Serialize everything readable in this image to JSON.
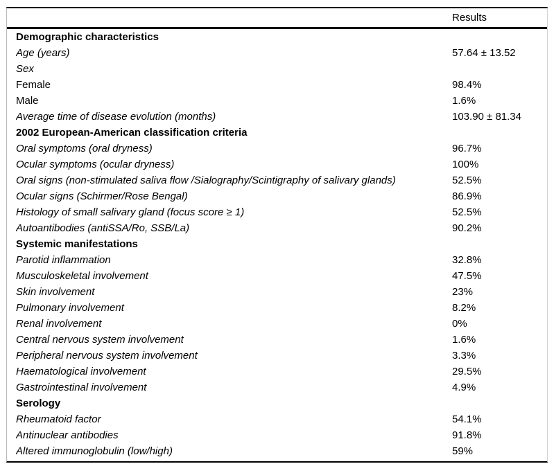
{
  "colors": {
    "text": "#000000",
    "rule_strong": "#000000",
    "rule_light": "#c4c4c4",
    "background": "#ffffff"
  },
  "table": {
    "header": {
      "results_col": "Results"
    },
    "rows": [
      {
        "label": "Demographic characteristics",
        "value": "",
        "style": "section"
      },
      {
        "label": "Age (years)",
        "value": "57.64 ± 13.52",
        "style": "italic"
      },
      {
        "label": "Sex",
        "value": "",
        "style": "italic"
      },
      {
        "label": "Female",
        "value": "98.4%",
        "style": "regular"
      },
      {
        "label": "Male",
        "value": "1.6%",
        "style": "regular"
      },
      {
        "label": "Average time of disease evolution (months)",
        "value": "103.90 ± 81.34",
        "style": "italic"
      },
      {
        "label": "2002 European-American classification criteria",
        "value": "",
        "style": "section"
      },
      {
        "label": "Oral symptoms (oral dryness)",
        "value": "96.7%",
        "style": "italic"
      },
      {
        "label": "Ocular symptoms (ocular dryness)",
        "value": "100%",
        "style": "italic"
      },
      {
        "label": "Oral signs (non-stimulated saliva flow /Sialography/Scintigraphy of salivary glands)",
        "value": "52.5%",
        "style": "italic"
      },
      {
        "label": "Ocular signs (Schirmer/Rose Bengal)",
        "value": "86.9%",
        "style": "italic"
      },
      {
        "label": "Histology of small salivary gland (focus score ≥ 1)",
        "value": "52.5%",
        "style": "italic"
      },
      {
        "label": "Autoantibodies (antiSSA/Ro, SSB/La)",
        "value": "90.2%",
        "style": "italic"
      },
      {
        "label": "Systemic manifestations",
        "value": "",
        "style": "section"
      },
      {
        "label": "Parotid inflammation",
        "value": "32.8%",
        "style": "italic"
      },
      {
        "label": "Musculoskeletal involvement",
        "value": "47.5%",
        "style": "italic"
      },
      {
        "label": "Skin involvement",
        "value": "23%",
        "style": "italic"
      },
      {
        "label": "Pulmonary involvement",
        "value": "8.2%",
        "style": "italic"
      },
      {
        "label": "Renal involvement",
        "value": "0%",
        "style": "italic"
      },
      {
        "label": "Central nervous system involvement",
        "value": "1.6%",
        "style": "italic"
      },
      {
        "label": "Peripheral nervous system involvement",
        "value": "3.3%",
        "style": "italic"
      },
      {
        "label": "Haematological involvement",
        "value": "29.5%",
        "style": "italic"
      },
      {
        "label": "Gastrointestinal involvement",
        "value": "4.9%",
        "style": "italic"
      },
      {
        "label": "Serology",
        "value": "",
        "style": "section"
      },
      {
        "label": "Rheumatoid factor",
        "value": "54.1%",
        "style": "italic"
      },
      {
        "label": "Antinuclear antibodies",
        "value": "91.8%",
        "style": "italic"
      },
      {
        "label": "Altered immunoglobulin (low/high)",
        "value": "59%",
        "style": "italic"
      }
    ]
  }
}
